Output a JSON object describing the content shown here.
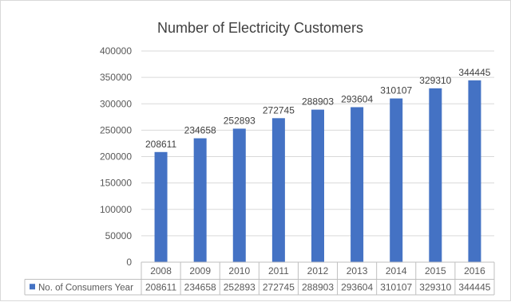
{
  "chart_data": {
    "type": "bar",
    "title": "Number of Electricity Customers",
    "categories": [
      "2008",
      "2009",
      "2010",
      "2011",
      "2012",
      "2013",
      "2014",
      "2015",
      "2016"
    ],
    "series": [
      {
        "name": "No. of Consumers Year",
        "values": [
          208611,
          234658,
          252893,
          272745,
          288903,
          293604,
          310107,
          329310,
          344445
        ],
        "color": "#4472c4"
      }
    ],
    "ylim": [
      0,
      400000
    ],
    "y_ticks": [
      "0",
      "50000",
      "100000",
      "150000",
      "200000",
      "250000",
      "300000",
      "350000",
      "400000"
    ],
    "grid": true,
    "data_labels": true,
    "data_table": true,
    "legend_placement": "data-table"
  }
}
